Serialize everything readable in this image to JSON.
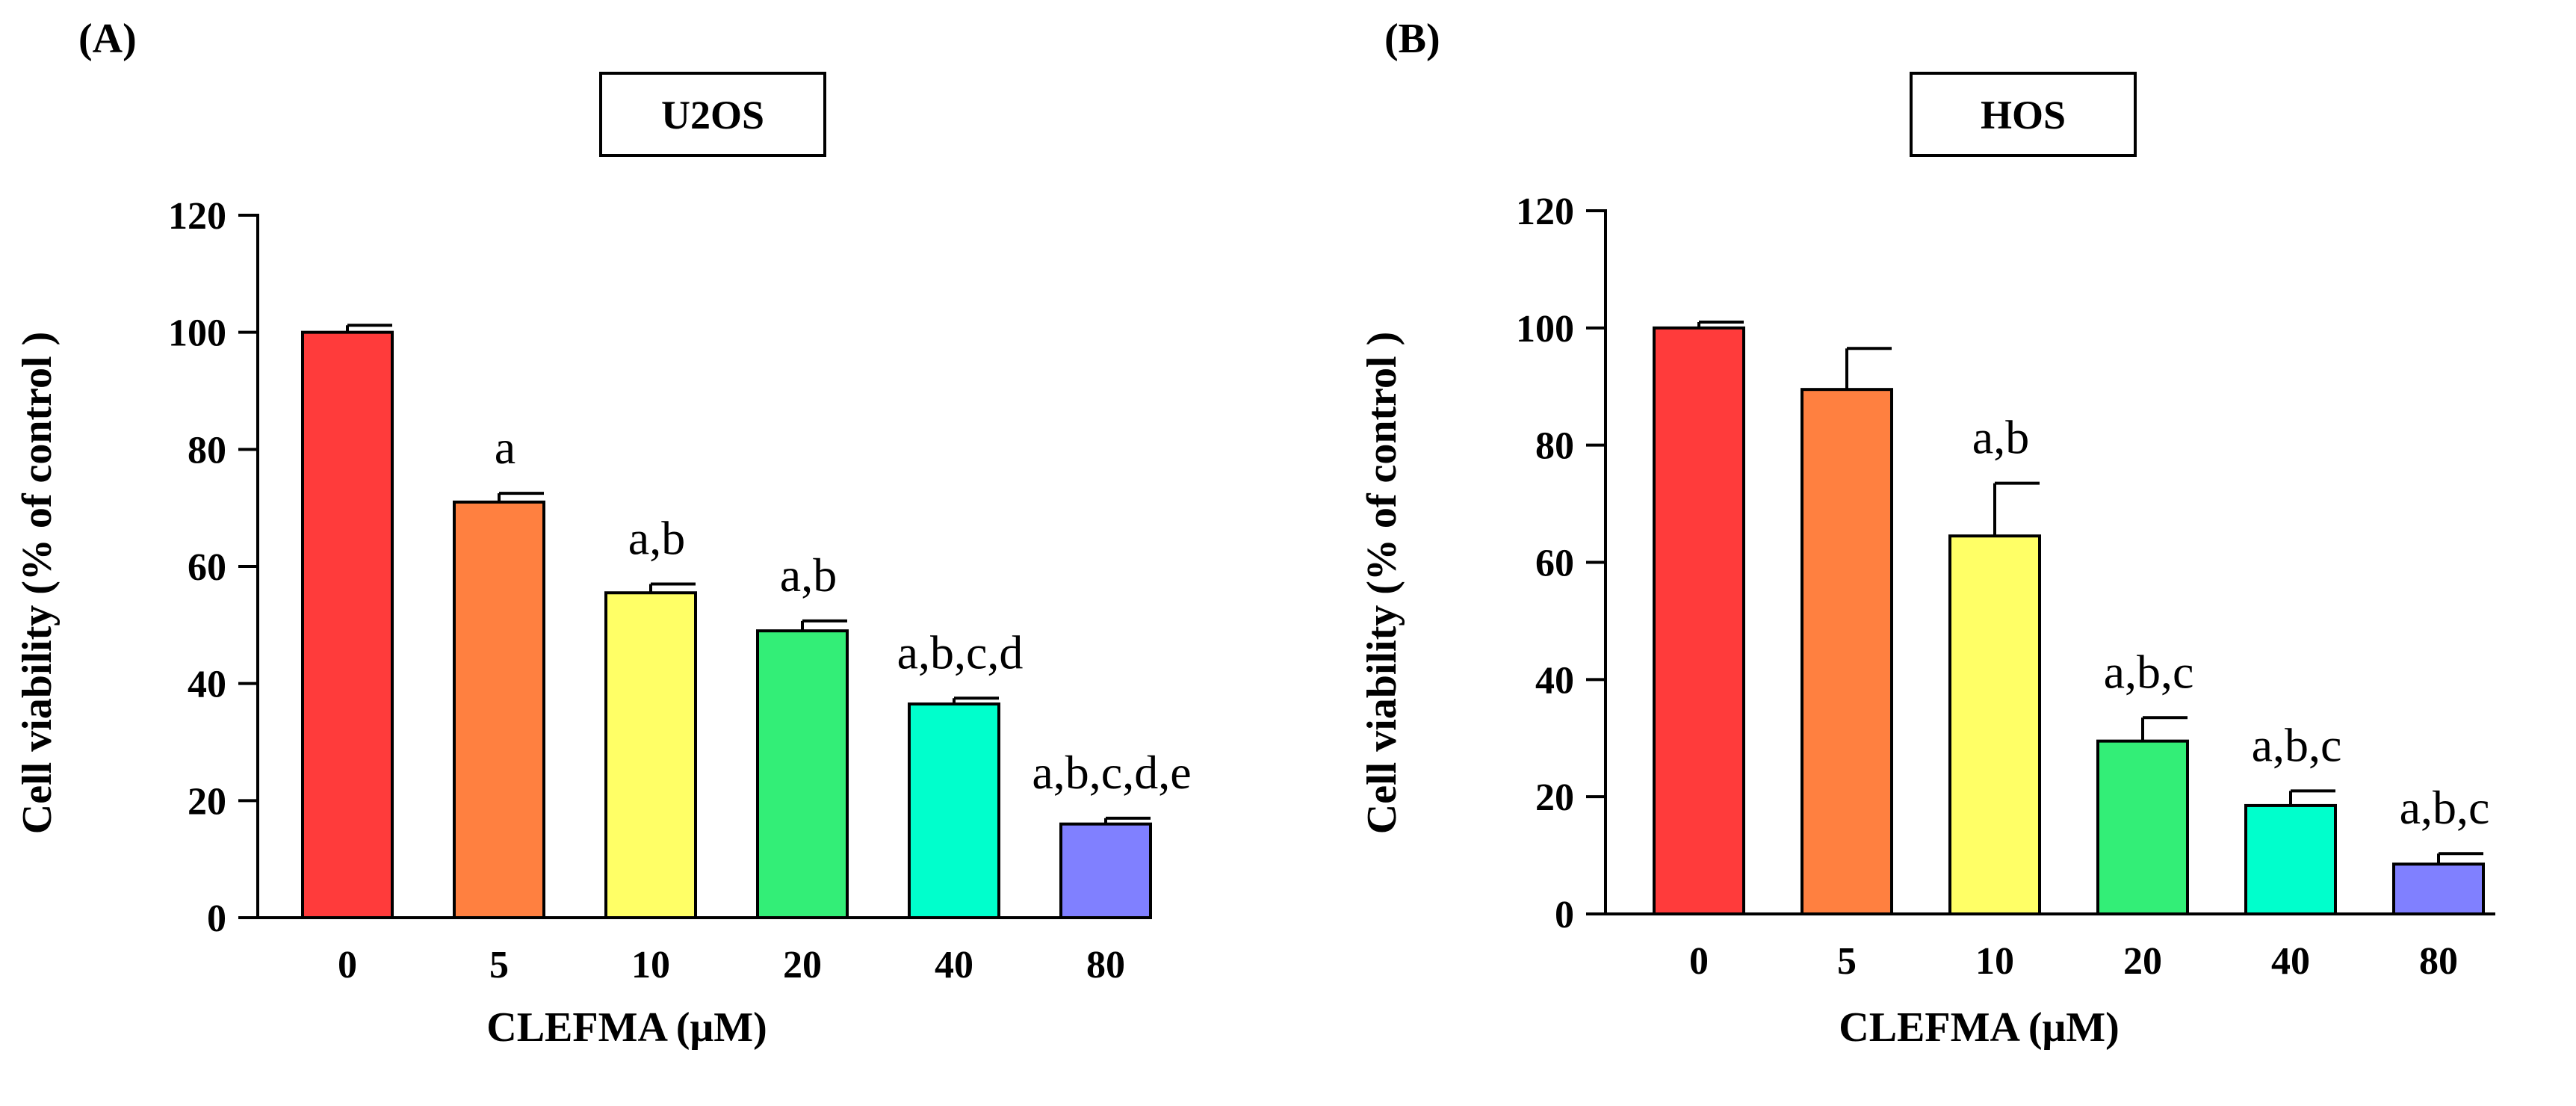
{
  "chart_data": [
    {
      "type": "bar",
      "panel_label": "(A)",
      "title": "U2OS",
      "xlabel": "CLEFMA (μM)",
      "ylabel": "Cell viability (% of  control )",
      "ylim": [
        0,
        120
      ],
      "yticks": [
        "0",
        "20",
        "40",
        "60",
        "80",
        "100",
        "120"
      ],
      "categories": [
        "0",
        "5",
        "10",
        "20",
        "40",
        "80"
      ],
      "values": [
        100,
        71,
        55.5,
        49,
        36.5,
        16
      ],
      "errors": [
        1.2,
        1.5,
        1.5,
        1.7,
        1.0,
        1.0
      ],
      "significance": [
        "",
        "a",
        "a,b",
        "a,b",
        "a,b,c,d",
        "a,b,c,d,e"
      ],
      "colors": [
        "#ff3b3b",
        "#ff8040",
        "#ffff66",
        "#33ee77",
        "#00ffcc",
        "#8080ff"
      ]
    },
    {
      "type": "bar",
      "panel_label": "(B)",
      "title": "HOS",
      "xlabel": "CLEFMA (μM)",
      "ylabel": "Cell viability (% of  control )",
      "ylim": [
        0,
        120
      ],
      "yticks": [
        "0",
        "20",
        "40",
        "60",
        "80",
        "100",
        "120"
      ],
      "categories": [
        "0",
        "5",
        "10",
        "20",
        "40",
        "80"
      ],
      "values": [
        100,
        89.5,
        64.5,
        29.5,
        18.5,
        8.5
      ],
      "errors": [
        1.0,
        7.0,
        9.0,
        4.0,
        2.5,
        1.8
      ],
      "significance": [
        "",
        "",
        "a,b",
        "a,b,c",
        "a,b,c",
        "a,b,c"
      ],
      "colors": [
        "#ff3b3b",
        "#ff8040",
        "#ffff66",
        "#33ee77",
        "#00ffcc",
        "#8080ff"
      ]
    }
  ]
}
